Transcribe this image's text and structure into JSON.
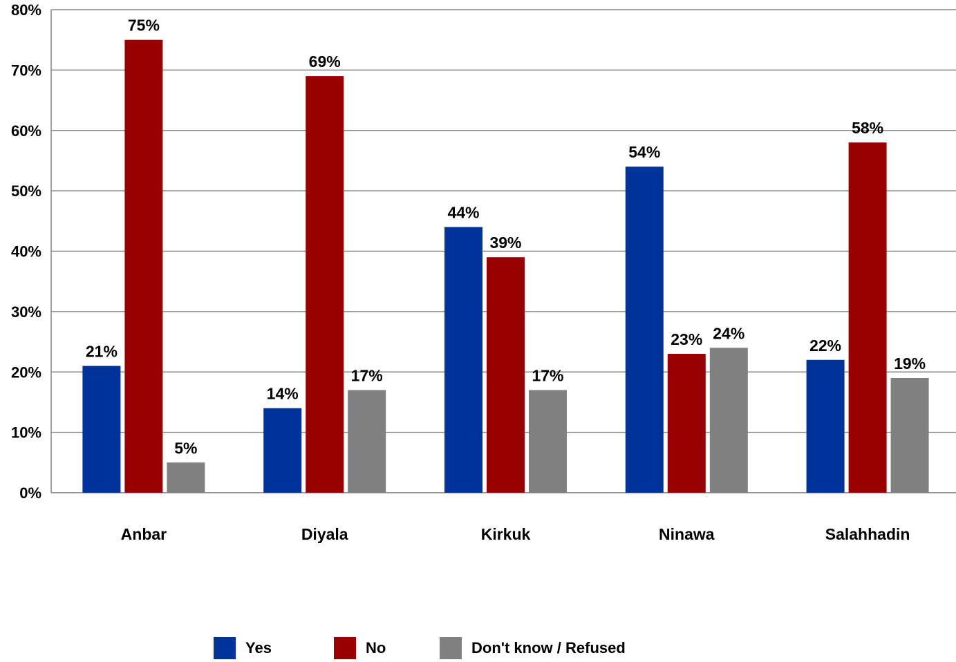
{
  "chart_data": {
    "type": "bar",
    "title": "",
    "xlabel": "",
    "ylabel": "",
    "ylim": [
      0,
      80
    ],
    "yticks": [
      "0%",
      "10%",
      "20%",
      "30%",
      "40%",
      "50%",
      "60%",
      "70%",
      "80%"
    ],
    "grid": true,
    "legend_position": "bottom",
    "categories": [
      "Anbar",
      "Diyala",
      "Kirkuk",
      "Ninawa",
      "Salahhadin"
    ],
    "series": [
      {
        "name": "Yes",
        "color": "#003399",
        "values": [
          21,
          14,
          44,
          54,
          22
        ],
        "labels": [
          "21%",
          "14%",
          "44%",
          "54%",
          "22%"
        ]
      },
      {
        "name": "No",
        "color": "#990000",
        "values": [
          75,
          69,
          39,
          23,
          58
        ],
        "labels": [
          "75%",
          "69%",
          "39%",
          "23%",
          "58%"
        ]
      },
      {
        "name": "Don't know / Refused",
        "color": "#808080",
        "values": [
          5,
          17,
          17,
          24,
          19
        ],
        "labels": [
          "5%",
          "17%",
          "17%",
          "24%",
          "19%"
        ]
      }
    ]
  }
}
